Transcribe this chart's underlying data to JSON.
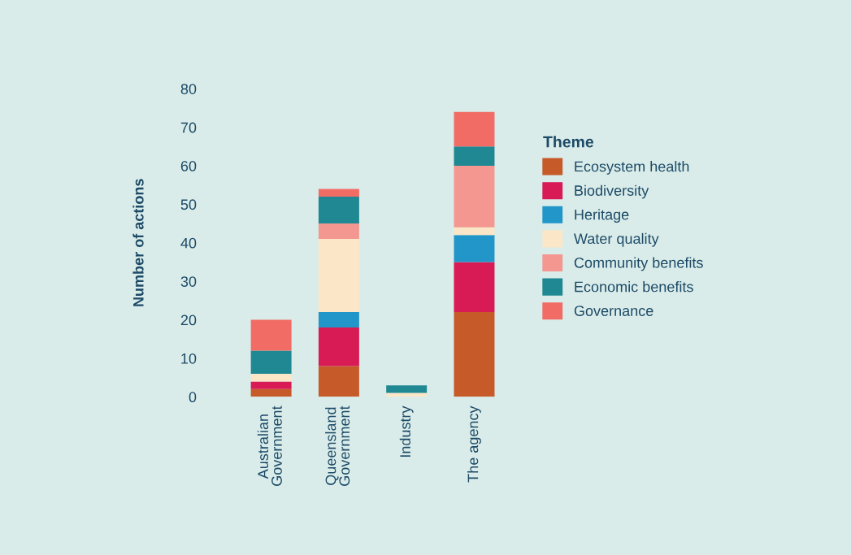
{
  "chart_data": {
    "type": "bar",
    "stacked": true,
    "ylabel": "Number of actions",
    "legend_title": "Theme",
    "legend": "right",
    "grid": false,
    "categories": [
      "Australian\nGovernment",
      "Queensland\nGovernment",
      "Industry",
      "The agency"
    ],
    "ylim": [
      0,
      80
    ],
    "yticks": [
      0,
      10,
      20,
      30,
      40,
      50,
      60,
      70,
      80
    ],
    "series": [
      {
        "name": "Ecosystem health",
        "color": "#c65a28",
        "values": [
          2,
          8,
          0,
          22
        ]
      },
      {
        "name": "Biodiversity",
        "color": "#d81b55",
        "values": [
          2,
          10,
          0,
          13
        ]
      },
      {
        "name": "Heritage",
        "color": "#2396c9",
        "values": [
          0,
          4,
          0,
          7
        ]
      },
      {
        "name": "Water quality",
        "color": "#fbe6c8",
        "values": [
          2,
          19,
          1,
          2
        ]
      },
      {
        "name": "Community benefits",
        "color": "#f59791",
        "values": [
          0,
          4,
          0,
          16
        ]
      },
      {
        "name": "Economic benefits",
        "color": "#1f8892",
        "values": [
          6,
          7,
          2,
          5
        ]
      },
      {
        "name": "Governance",
        "color": "#f26c66",
        "values": [
          8,
          2,
          0,
          9
        ]
      }
    ]
  }
}
